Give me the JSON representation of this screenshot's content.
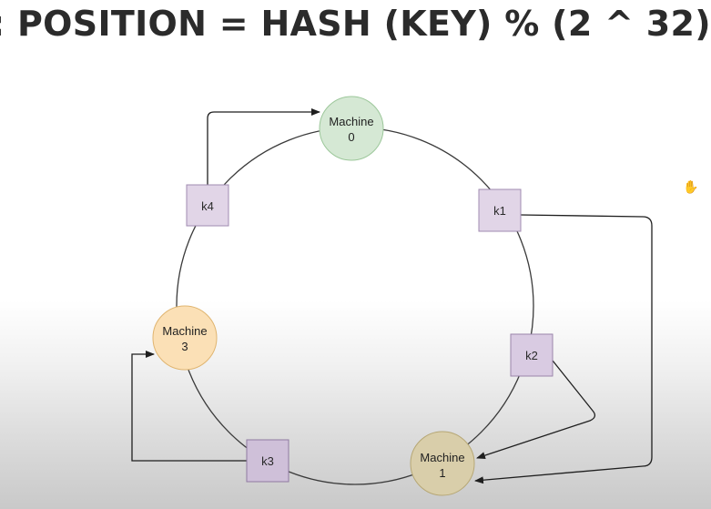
{
  "heading": ": POSITION = HASH (KEY) % (2 ^ 32)",
  "machines": [
    {
      "line1": "Machine",
      "line2": "0",
      "fill": "#d5e8d4",
      "stroke": "#9cc79a"
    },
    {
      "line1": "Machine",
      "line2": "1",
      "fill": "#d9ceaa",
      "stroke": "#b6a775"
    },
    {
      "line1": "Machine",
      "line2": "3",
      "fill": "#fbe0b6",
      "stroke": "#e0b570"
    }
  ],
  "keys": [
    {
      "label": "k1",
      "fill": "#e1d5e7",
      "stroke": "#a08bb0"
    },
    {
      "label": "k2",
      "fill": "#d9cbe2",
      "stroke": "#9a85ab"
    },
    {
      "label": "k3",
      "fill": "#cfc0d9",
      "stroke": "#8f7aa1"
    },
    {
      "label": "k4",
      "fill": "#e1d5e7",
      "stroke": "#a08bb0"
    }
  ],
  "cursor_icon": "hand-pointer-icon"
}
